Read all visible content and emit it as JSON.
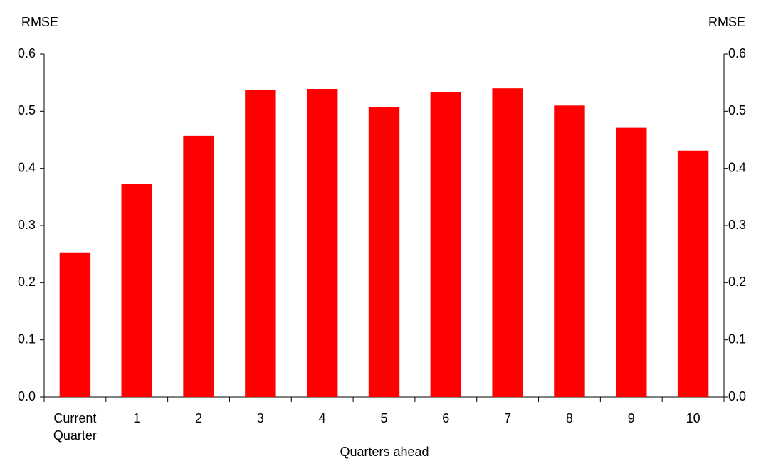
{
  "chart_data": {
    "type": "bar",
    "y_label": "RMSE",
    "y2_label": "RMSE",
    "x_label": "Quarters ahead",
    "categories": [
      "Current Quarter",
      "1",
      "2",
      "3",
      "4",
      "5",
      "6",
      "7",
      "8",
      "9",
      "10"
    ],
    "values": [
      0.253,
      0.373,
      0.457,
      0.537,
      0.539,
      0.507,
      0.533,
      0.54,
      0.51,
      0.471,
      0.431
    ],
    "color": "#ff0000",
    "ylim": [
      0,
      0.6
    ],
    "yticks": [
      {
        "value": 0,
        "label": "0.0"
      },
      0.1,
      0.2,
      0.3,
      0.4,
      0.5,
      0.6
    ],
    "y2lim": [
      0,
      0.6
    ],
    "y2ticks": [
      {
        "value": 0,
        "label": "0.0"
      },
      0.1,
      0.2,
      0.3,
      0.4,
      0.5,
      0.6
    ],
    "grid": false
  }
}
